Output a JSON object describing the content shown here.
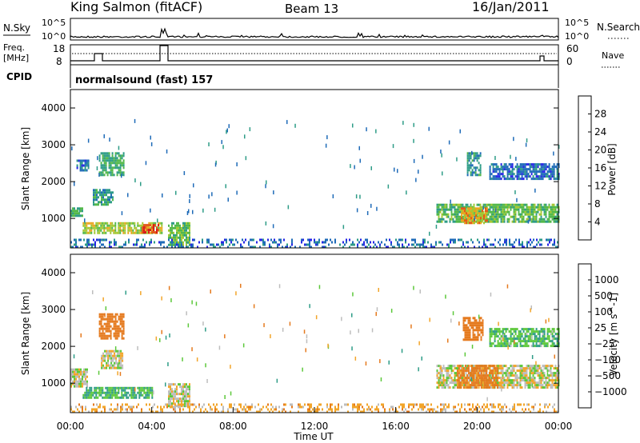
{
  "header": {
    "station": "King Salmon (fitACF)",
    "beam": "Beam 13",
    "date": "16/Jan/2011"
  },
  "noise_panel": {
    "left_label": "N.Sky",
    "right_label": "N.Search",
    "left_ticks": [
      "10^5",
      "10^0"
    ],
    "right_ticks": [
      "10^5",
      "10^0"
    ]
  },
  "freq_panel": {
    "left_label_top": "Freq.",
    "left_label_bottom": "[MHz]",
    "left_ticks": [
      "18",
      "8"
    ],
    "right_label": "Nave",
    "right_ticks": [
      "60",
      "0"
    ]
  },
  "cpid_panel": {
    "label": "CPID",
    "program": "normalsound (fast) 157"
  },
  "colors": {
    "power": [
      "#2626e6",
      "#1f6bb8",
      "#2e9c87",
      "#53b84a",
      "#a5c832",
      "#eaa51e",
      "#e25a1a",
      "#d91a1a"
    ],
    "velocity": [
      "#2026e0",
      "#1f6bb8",
      "#2e9c87",
      "#5cc83a",
      "#bdbdbd",
      "#f2a52a",
      "#e57a1e",
      "#e03a18",
      "#d91a1a"
    ]
  },
  "chart_data": [
    {
      "type": "heatmap",
      "name": "power",
      "ylabel": "Slant Range [km]",
      "xlim": [
        "00:00",
        "24:00"
      ],
      "ylim": [
        200,
        4500
      ],
      "yticks": [
        "1000",
        "2000",
        "3000",
        "4000"
      ],
      "colorbar_label": "Power [dB]",
      "colorbar_ticks": [
        "4",
        "8",
        "12",
        "16",
        "20",
        "24",
        "28"
      ],
      "colorbar_range": [
        0,
        32
      ],
      "echo_regions": [
        {
          "t": [
            0.0,
            0.6
          ],
          "r": [
            1050,
            1300
          ],
          "value": 12
        },
        {
          "t": [
            0.6,
            4.5
          ],
          "r": [
            600,
            900
          ],
          "value": 18
        },
        {
          "t": [
            3.5,
            4.3
          ],
          "r": [
            650,
            850
          ],
          "value": 26
        },
        {
          "t": [
            1.1,
            2.1
          ],
          "r": [
            1400,
            1800
          ],
          "value": 10
        },
        {
          "t": [
            1.4,
            2.6
          ],
          "r": [
            2200,
            2800
          ],
          "value": 12
        },
        {
          "t": [
            0.3,
            0.9
          ],
          "r": [
            2300,
            2600
          ],
          "value": 6
        },
        {
          "t": [
            4.8,
            5.9
          ],
          "r": [
            300,
            900
          ],
          "value": 14
        },
        {
          "t": [
            18.0,
            24.0
          ],
          "r": [
            900,
            1400
          ],
          "value": 14
        },
        {
          "t": [
            19.2,
            20.5
          ],
          "r": [
            900,
            1300
          ],
          "value": 22
        },
        {
          "t": [
            19.5,
            20.2
          ],
          "r": [
            2200,
            2800
          ],
          "value": 10
        },
        {
          "t": [
            20.6,
            24.0
          ],
          "r": [
            2100,
            2500
          ],
          "value": 6
        },
        {
          "t": [
            0.0,
            24.0
          ],
          "r": [
            250,
            450
          ],
          "value": 6
        }
      ]
    },
    {
      "type": "heatmap",
      "name": "velocity",
      "xlabel": "Time UT",
      "ylabel": "Slant Range [km]",
      "xlim": [
        "00:00",
        "24:00"
      ],
      "xticks": [
        "00:00",
        "04:00",
        "08:00",
        "12:00",
        "16:00",
        "20:00",
        "00:00"
      ],
      "ylim": [
        200,
        4500
      ],
      "yticks": [
        "1000",
        "2000",
        "3000",
        "4000"
      ],
      "colorbar_label": "Velocity [m s^-1]",
      "colorbar_ticks": [
        "1000",
        "500",
        "100",
        "25",
        "−25",
        "−100",
        "−500",
        "−1000"
      ],
      "echo_regions": [
        {
          "t": [
            0.0,
            0.8
          ],
          "r": [
            900,
            1400
          ],
          "value": 0
        },
        {
          "t": [
            0.6,
            4.0
          ],
          "r": [
            600,
            900
          ],
          "value": 100
        },
        {
          "t": [
            1.5,
            2.6
          ],
          "r": [
            1400,
            1900
          ],
          "value": 0
        },
        {
          "t": [
            1.4,
            2.6
          ],
          "r": [
            2200,
            2900
          ],
          "value": -300
        },
        {
          "t": [
            4.8,
            5.9
          ],
          "r": [
            400,
            1000
          ],
          "value": 0
        },
        {
          "t": [
            18.0,
            24.0
          ],
          "r": [
            900,
            1500
          ],
          "value": 0
        },
        {
          "t": [
            19.0,
            21.0
          ],
          "r": [
            900,
            1500
          ],
          "value": -150
        },
        {
          "t": [
            19.3,
            20.3
          ],
          "r": [
            2200,
            2800
          ],
          "value": -400
        },
        {
          "t": [
            20.6,
            24.0
          ],
          "r": [
            2000,
            2500
          ],
          "value": 80
        },
        {
          "t": [
            0.0,
            24.0
          ],
          "r": [
            250,
            450
          ],
          "value": -60
        }
      ]
    }
  ]
}
